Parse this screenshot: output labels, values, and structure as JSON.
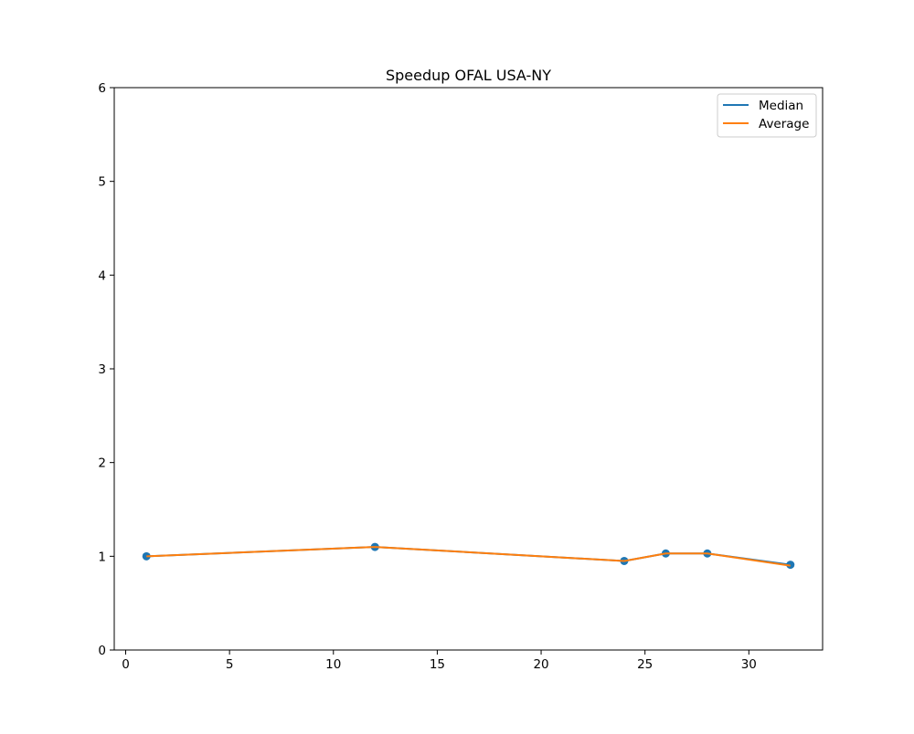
{
  "chart_data": {
    "type": "line",
    "title": "Speedup OFAL USA-NY",
    "xlabel": "",
    "ylabel": "",
    "xlim": [
      -0.55,
      33.55
    ],
    "ylim": [
      0,
      6
    ],
    "xticks": [
      0,
      5,
      10,
      15,
      20,
      25,
      30
    ],
    "yticks": [
      0,
      1,
      2,
      3,
      4,
      5,
      6
    ],
    "grid": false,
    "legend_position": "top-right",
    "x": [
      1,
      12,
      24,
      26,
      28,
      32
    ],
    "series": [
      {
        "name": "Median",
        "color": "#1f77b4",
        "values": [
          1.0,
          1.1,
          0.95,
          1.03,
          1.03,
          0.91
        ]
      },
      {
        "name": "Average",
        "color": "#ff7f0e",
        "values": [
          1.0,
          1.1,
          0.95,
          1.03,
          1.03,
          0.9
        ]
      }
    ],
    "scatter": {
      "name": "",
      "color": "#1f77b4",
      "values": [
        1.0,
        1.1,
        0.95,
        1.03,
        1.03,
        0.91
      ]
    }
  }
}
